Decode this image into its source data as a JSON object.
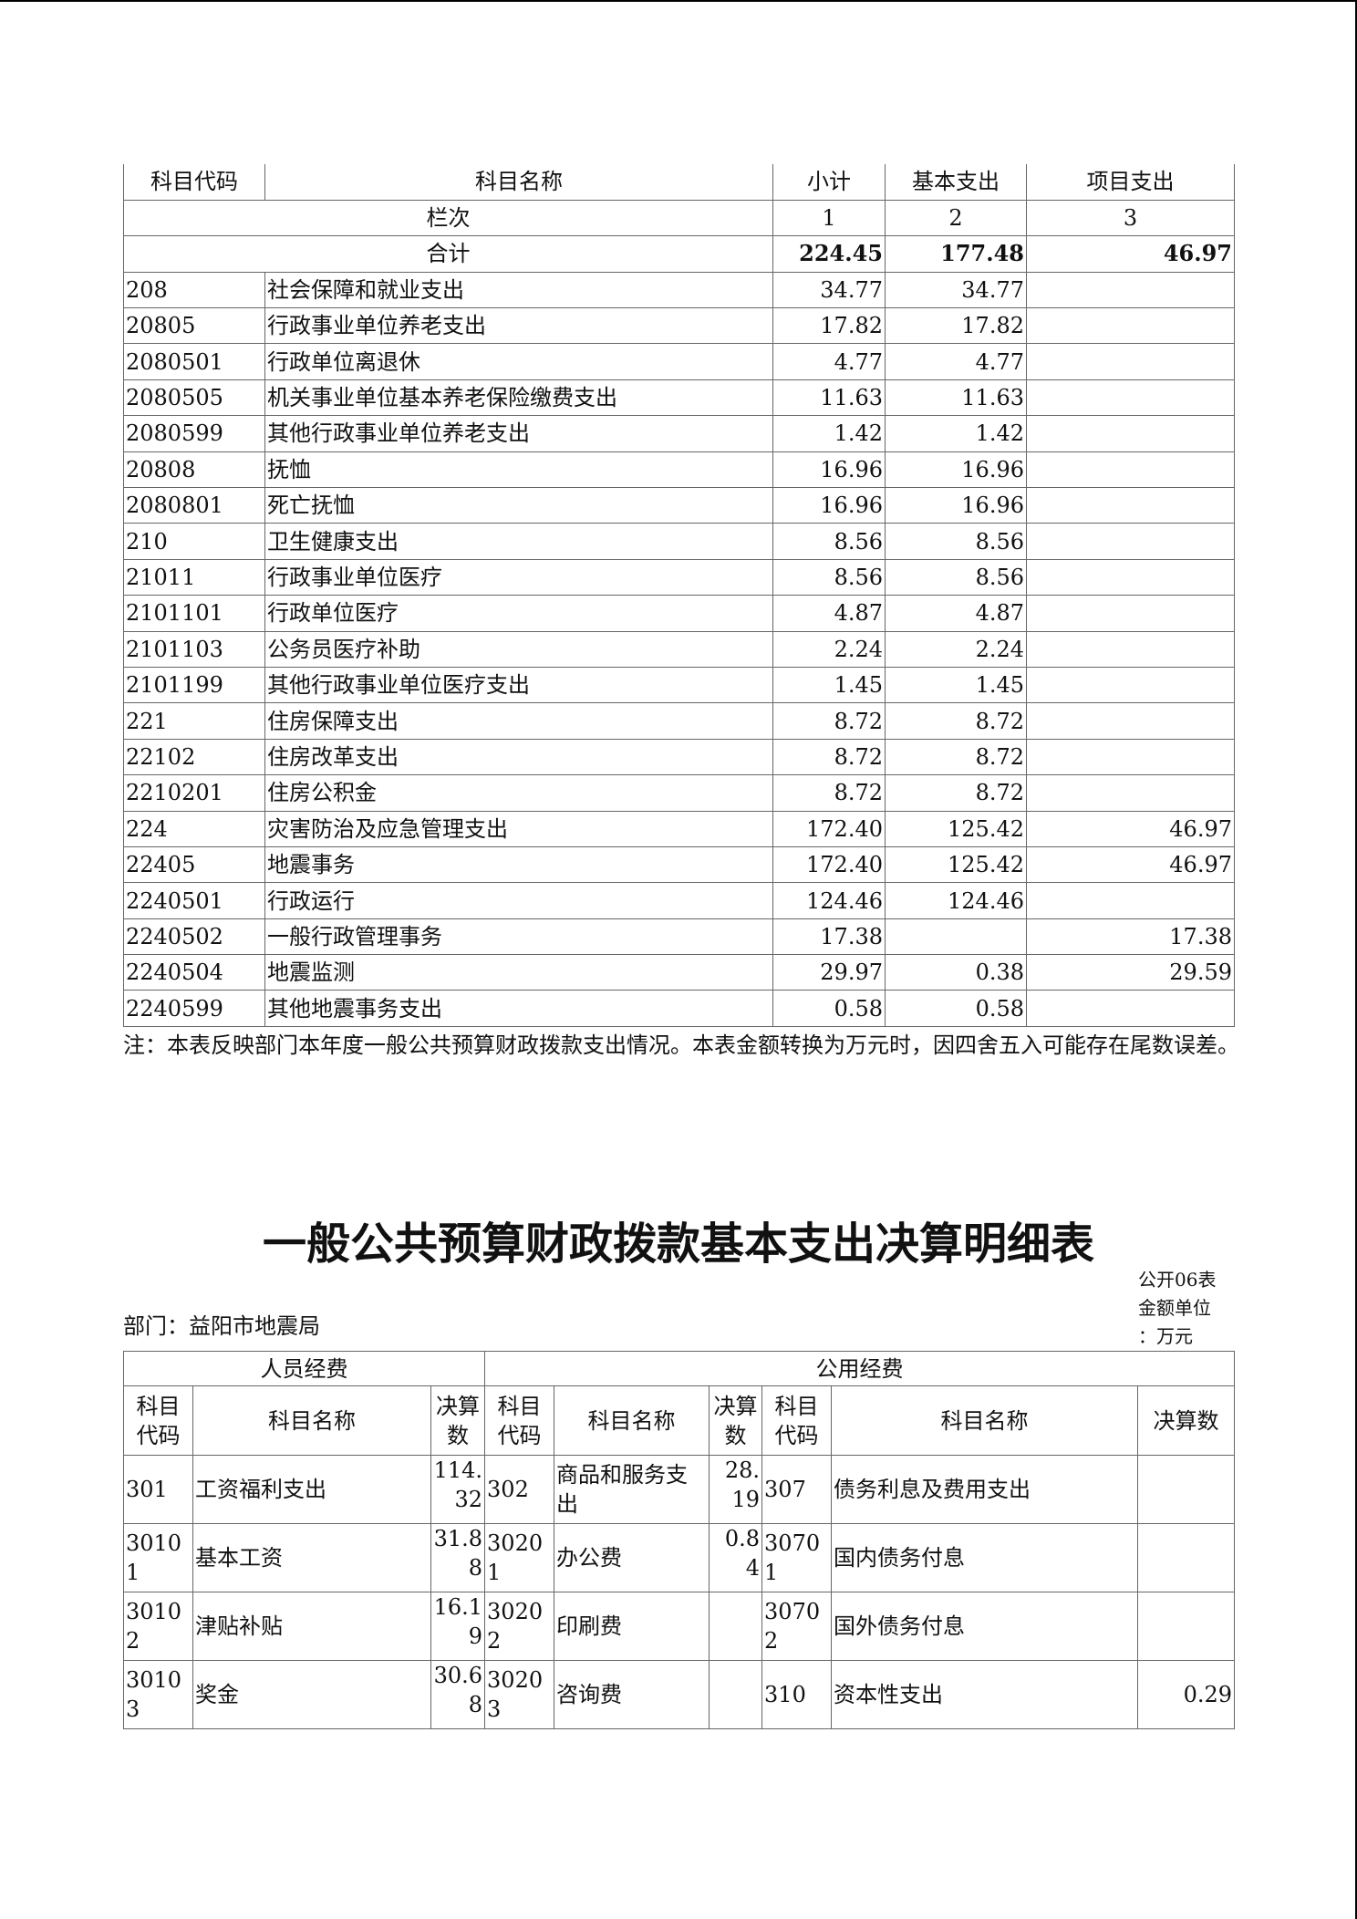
{
  "table1": {
    "headers": [
      "科目代码",
      "科目名称",
      "小计",
      "基本支出",
      "项目支出"
    ],
    "index_row": {
      "label": "栏次",
      "cols": [
        "1",
        "2",
        "3"
      ]
    },
    "total_row": {
      "label": "合计",
      "values": [
        "224.45",
        "177.48",
        "46.97"
      ]
    },
    "rows": [
      [
        "208",
        "社会保障和就业支出",
        "34.77",
        "34.77",
        ""
      ],
      [
        "20805",
        "行政事业单位养老支出",
        "17.82",
        "17.82",
        ""
      ],
      [
        "2080501",
        "行政单位离退休",
        "4.77",
        "4.77",
        ""
      ],
      [
        "2080505",
        "机关事业单位基本养老保险缴费支出",
        "11.63",
        "11.63",
        ""
      ],
      [
        "2080599",
        "其他行政事业单位养老支出",
        "1.42",
        "1.42",
        ""
      ],
      [
        "20808",
        "抚恤",
        "16.96",
        "16.96",
        ""
      ],
      [
        "2080801",
        "死亡抚恤",
        "16.96",
        "16.96",
        ""
      ],
      [
        "210",
        "卫生健康支出",
        "8.56",
        "8.56",
        ""
      ],
      [
        "21011",
        "行政事业单位医疗",
        "8.56",
        "8.56",
        ""
      ],
      [
        "2101101",
        "行政单位医疗",
        "4.87",
        "4.87",
        ""
      ],
      [
        "2101103",
        "公务员医疗补助",
        "2.24",
        "2.24",
        ""
      ],
      [
        "2101199",
        "其他行政事业单位医疗支出",
        "1.45",
        "1.45",
        ""
      ],
      [
        "221",
        "住房保障支出",
        "8.72",
        "8.72",
        ""
      ],
      [
        "22102",
        "住房改革支出",
        "8.72",
        "8.72",
        ""
      ],
      [
        "2210201",
        "住房公积金",
        "8.72",
        "8.72",
        ""
      ],
      [
        "224",
        "灾害防治及应急管理支出",
        "172.40",
        "125.42",
        "46.97"
      ],
      [
        "22405",
        "地震事务",
        "172.40",
        "125.42",
        "46.97"
      ],
      [
        "2240501",
        "行政运行",
        "124.46",
        "124.46",
        ""
      ],
      [
        "2240502",
        "一般行政管理事务",
        "17.38",
        "",
        "17.38"
      ],
      [
        "2240504",
        "地震监测",
        "29.97",
        "0.38",
        "29.59"
      ],
      [
        "2240599",
        "其他地震事务支出",
        "0.58",
        "0.58",
        ""
      ]
    ],
    "note": "注：本表反映部门本年度一般公共预算财政拨款支出情况。本表金额转换为万元时，因四舍五入可能存在尾数误差。"
  },
  "table2": {
    "title": "一般公共预算财政拨款基本支出决算明细表",
    "form_no": "公开06表",
    "unit_line1": "金额单位",
    "unit_line2": "：万元",
    "department": "部门：益阳市地震局",
    "group_headers": [
      "人员经费",
      "公用经费"
    ],
    "headers": [
      "科目代码",
      "科目名称",
      "决算数",
      "科目代码",
      "科目名称",
      "决算数",
      "科目代码",
      "科目名称",
      "决算数"
    ],
    "rows": [
      [
        "301",
        "工资福利支出",
        "114.32",
        "302",
        "商品和服务支出",
        "28.19",
        "307",
        "债务利息及费用支出",
        ""
      ],
      [
        "30101",
        "基本工资",
        "31.88",
        "30201",
        "办公费",
        "0.84",
        "30701",
        "国内债务付息",
        ""
      ],
      [
        "30102",
        "津贴补贴",
        "16.19",
        "30202",
        "印刷费",
        "",
        "30702",
        "国外债务付息",
        ""
      ],
      [
        "30103",
        "奖金",
        "30.68",
        "30203",
        "咨询费",
        "",
        "310",
        "资本性支出",
        "0.29"
      ]
    ]
  }
}
